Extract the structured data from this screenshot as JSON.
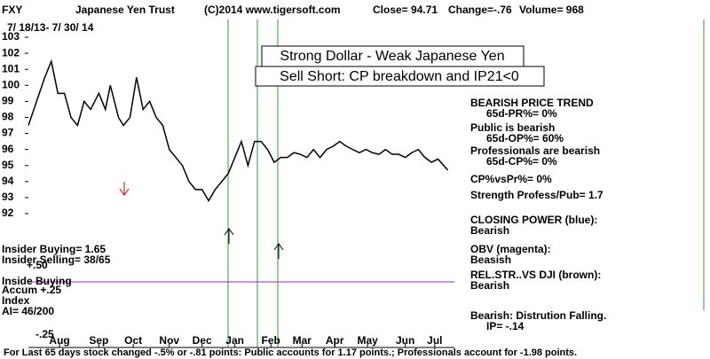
{
  "chart_data": {
    "type": "line",
    "ticker": "FXY",
    "title": "Japanese Yen Trust",
    "copyright": "(C)2014 www.tigersoft.com",
    "close_text": "Close=  94.71",
    "change_text": "Change=-.76",
    "volume_text": "Volume= 968",
    "date_range": "7/ 18/13-  7/ 30/ 14",
    "callouts": [
      "Strong Dollar - Weak Japanese Yen",
      "Sell Short: CP breakdown and IP21<0"
    ],
    "right_notes": [
      "BEARISH PRICE TREND",
      "65d-PR%= 0%",
      "Public is bearish",
      "65d-OP%= 60%",
      "Professionals are bearish",
      "65d-CP%= 0%",
      "CP%vsPr%=  0%",
      "Strength Profess/Pub= 1.7",
      "CLOSING POWER (blue):",
      "Bearish",
      "OBV (magenta):",
      "Beasish",
      "REL.STR..VS DJI (brown):",
      "Bearish",
      "Bearish: Distrution Falling.",
      "IP= -.14"
    ],
    "left_notes": [
      "Insider Buying= 1.65",
      "Insider Selling= 38/65",
      "+.50",
      "Inside Buying",
      "Accum +.25",
      "Index",
      "AI= 46/200",
      "-.25"
    ],
    "footer": "For Last 65 days stock changed -.5% or -.81 points:  Public accounts for  1.17 points.;  Professionals account for -1.98 points.",
    "x": [
      0,
      5,
      10,
      14,
      18,
      22,
      26,
      30,
      34,
      38,
      43,
      47,
      50,
      55,
      58,
      62,
      66,
      70,
      74,
      78,
      82,
      86,
      90,
      94,
      98,
      102,
      106,
      110,
      114,
      118,
      122,
      126,
      130,
      134,
      138,
      142,
      146,
      150,
      154,
      158,
      162,
      166,
      170,
      174,
      178,
      182,
      186,
      190,
      194,
      198,
      202,
      206,
      210,
      214,
      218,
      222,
      226,
      230,
      234,
      238,
      242,
      246,
      250,
      256
    ],
    "values": [
      97.5,
      99,
      100.5,
      101.5,
      99.5,
      99.5,
      98,
      97.5,
      99,
      98.5,
      99.5,
      98.5,
      100,
      98,
      97.5,
      98,
      100.5,
      98.5,
      99,
      98,
      97.5,
      96,
      95.5,
      95,
      94,
      93.5,
      93.5,
      92.8,
      93.5,
      94,
      94.5,
      95.5,
      96.5,
      95,
      96.5,
      96.5,
      96,
      95.2,
      95.5,
      95.5,
      95.8,
      95.7,
      95.5,
      96,
      95.5,
      96,
      96.2,
      96.5,
      96.2,
      96,
      95.8,
      96,
      95.8,
      95.7,
      96,
      95.7,
      95.7,
      95.5,
      95.8,
      96,
      95.5,
      95.2,
      95.4,
      94.71
    ],
    "color": "#000000",
    "xlim": [
      0,
      260
    ],
    "xticks": [
      {
        "value": 19,
        "label": "Aug"
      },
      {
        "value": 43,
        "label": "Sep"
      },
      {
        "value": 64,
        "label": "Oct"
      },
      {
        "value": 86,
        "label": "Nov"
      },
      {
        "value": 106,
        "label": "Dec"
      },
      {
        "value": 126,
        "label": "Jan"
      },
      {
        "value": 148,
        "label": "Feb"
      },
      {
        "value": 167,
        "label": "Mar"
      },
      {
        "value": 187,
        "label": "Apr"
      },
      {
        "value": 207,
        "label": "May"
      },
      {
        "value": 230,
        "label": "Jun"
      },
      {
        "value": 248,
        "label": "Jul"
      }
    ],
    "ylim": [
      91.5,
      103.5
    ],
    "yticks": [
      92,
      93,
      94,
      95,
      96,
      97,
      98,
      99,
      100,
      101,
      102,
      103
    ]
  }
}
